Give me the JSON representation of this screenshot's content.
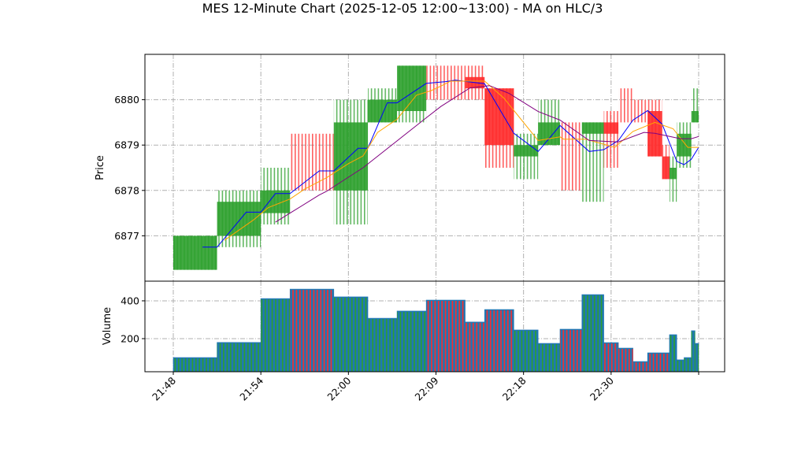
{
  "chart_data": [
    {
      "type": "candlestick",
      "title": "MES 12-Minute Chart (2025-12-05 12:00~13:00) - MA on HLC/3",
      "ylabel": "Price",
      "ylim": [
        6876.0,
        6881.0
      ],
      "yticks": [
        6877,
        6878,
        6879,
        6880
      ],
      "grid": true,
      "colors": {
        "up": "#2ca02c",
        "down": "#ff2a2a",
        "ma_fast": "#0000ff",
        "ma_mid": "#ffa500",
        "ma_slow": "#800080"
      },
      "xticks": [
        {
          "t": "21:48",
          "label": "21:48"
        },
        {
          "t": "21:54",
          "label": "21:54"
        },
        {
          "t": "22:00",
          "label": "22:00"
        },
        {
          "t": "22:09",
          "label": "22:09"
        },
        {
          "t": "22:18",
          "label": "22:18"
        },
        {
          "t": "22:30",
          "label": "22:30"
        },
        {
          "t": "22:42",
          "label": ""
        }
      ],
      "candles": [
        {
          "start": "21:48",
          "end": "21:51",
          "open": 6876.25,
          "high": 6877.0,
          "low": 6876.25,
          "close": 6877.0,
          "color": "up"
        },
        {
          "start": "21:51",
          "end": "21:54",
          "open": 6877.0,
          "high": 6878.0,
          "low": 6876.75,
          "close": 6877.75,
          "color": "up"
        },
        {
          "start": "21:54",
          "end": "21:56",
          "open": 6877.5,
          "high": 6878.5,
          "low": 6877.25,
          "close": 6878.0,
          "color": "up"
        },
        {
          "start": "21:56",
          "end": "21:59",
          "open": 6878.0,
          "high": 6879.25,
          "low": 6878.0,
          "close": 6878.0,
          "color": "down"
        },
        {
          "start": "21:59",
          "end": "22:02",
          "open": 6878.0,
          "high": 6880.0,
          "low": 6877.25,
          "close": 6879.5,
          "color": "up"
        },
        {
          "start": "22:02",
          "end": "22:05",
          "open": 6879.5,
          "high": 6880.25,
          "low": 6879.5,
          "close": 6880.0,
          "color": "up"
        },
        {
          "start": "22:05",
          "end": "22:08",
          "open": 6879.75,
          "high": 6880.75,
          "low": 6879.5,
          "close": 6880.75,
          "color": "up"
        },
        {
          "start": "22:08",
          "end": "22:12",
          "open": 6880.25,
          "high": 6880.75,
          "low": 6880.0,
          "close": 6880.25,
          "color": "down"
        },
        {
          "start": "22:12",
          "end": "22:14",
          "open": 6880.5,
          "high": 6880.75,
          "low": 6880.0,
          "close": 6880.25,
          "color": "down"
        },
        {
          "start": "22:14",
          "end": "22:17",
          "open": 6880.25,
          "high": 6880.25,
          "low": 6878.5,
          "close": 6879.0,
          "color": "down"
        },
        {
          "start": "22:17",
          "end": "22:20",
          "open": 6878.75,
          "high": 6879.25,
          "low": 6878.25,
          "close": 6879.0,
          "color": "up"
        },
        {
          "start": "22:20",
          "end": "22:23",
          "open": 6879.0,
          "high": 6880.0,
          "low": 6879.0,
          "close": 6879.5,
          "color": "up"
        },
        {
          "start": "22:23",
          "end": "22:26",
          "open": 6879.5,
          "high": 6879.5,
          "low": 6878.0,
          "close": 6879.5,
          "color": "down"
        },
        {
          "start": "22:26",
          "end": "22:29",
          "open": 6879.25,
          "high": 6879.5,
          "low": 6877.75,
          "close": 6879.5,
          "color": "up"
        },
        {
          "start": "22:29",
          "end": "22:31",
          "open": 6879.5,
          "high": 6879.75,
          "low": 6878.5,
          "close": 6879.25,
          "color": "down"
        },
        {
          "start": "22:31",
          "end": "22:33",
          "open": 6879.75,
          "high": 6880.25,
          "low": 6879.5,
          "close": 6879.75,
          "color": "down"
        },
        {
          "start": "22:33",
          "end": "22:35",
          "open": 6879.75,
          "high": 6880.0,
          "low": 6879.5,
          "close": 6879.75,
          "color": "down"
        },
        {
          "start": "22:35",
          "end": "22:37",
          "open": 6879.75,
          "high": 6880.0,
          "low": 6878.75,
          "close": 6878.75,
          "color": "down"
        },
        {
          "start": "22:37",
          "end": "22:38",
          "open": 6878.75,
          "high": 6879.0,
          "low": 6878.25,
          "close": 6878.25,
          "color": "down"
        },
        {
          "start": "22:38",
          "end": "22:39",
          "open": 6878.25,
          "high": 6878.75,
          "low": 6877.75,
          "close": 6878.5,
          "color": "up"
        },
        {
          "start": "22:39",
          "end": "22:40",
          "open": 6878.75,
          "high": 6879.5,
          "low": 6878.5,
          "close": 6879.25,
          "color": "up"
        },
        {
          "start": "22:40",
          "end": "22:41",
          "open": 6878.75,
          "high": 6879.5,
          "low": 6878.5,
          "close": 6879.25,
          "color": "up"
        },
        {
          "start": "22:41",
          "end": "22:42",
          "open": 6879.5,
          "high": 6880.25,
          "low": 6879.5,
          "close": 6879.75,
          "color": "up"
        }
      ],
      "moving_averages": [
        {
          "key": "ma_fast",
          "points": [
            [
              "21:50",
              6876.75
            ],
            [
              "21:51",
              6876.75
            ],
            [
              "21:53",
              6877.52
            ],
            [
              "21:54",
              6877.52
            ],
            [
              "21:55",
              6877.93
            ],
            [
              "21:56",
              6877.93
            ],
            [
              "21:58",
              6878.43
            ],
            [
              "21:59",
              6878.43
            ],
            [
              "22:01",
              6878.93
            ],
            [
              "22:02",
              6878.93
            ],
            [
              "22:04",
              6879.93
            ],
            [
              "22:05",
              6879.93
            ],
            [
              "22:08",
              6880.36
            ],
            [
              "22:10",
              6880.4
            ],
            [
              "22:11",
              6880.43
            ],
            [
              "22:14",
              6880.35
            ],
            [
              "22:17",
              6879.26
            ],
            [
              "22:20",
              6878.86
            ],
            [
              "22:23",
              6879.43
            ],
            [
              "22:27",
              6878.86
            ],
            [
              "22:29",
              6878.9
            ],
            [
              "22:31",
              6879.1
            ],
            [
              "22:33",
              6879.55
            ],
            [
              "22:35",
              6879.76
            ],
            [
              "22:37",
              6879.46
            ],
            [
              "22:39",
              6878.64
            ],
            [
              "22:40",
              6878.57
            ],
            [
              "22:41",
              6878.69
            ],
            [
              "22:42",
              6878.95
            ]
          ]
        },
        {
          "key": "ma_mid",
          "points": [
            [
              "21:51:30",
              6876.9
            ],
            [
              "21:53:30",
              6877.35
            ],
            [
              "21:54:30",
              6877.62
            ],
            [
              "21:56",
              6877.81
            ],
            [
              "21:57",
              6878.03
            ],
            [
              "21:58:30",
              6878.28
            ],
            [
              "22:00",
              6878.59
            ],
            [
              "22:01:30",
              6878.76
            ],
            [
              "22:03",
              6879.28
            ],
            [
              "22:05",
              6879.57
            ],
            [
              "22:07",
              6880.1
            ],
            [
              "22:08:30",
              6880.2
            ],
            [
              "22:09:30",
              6880.3
            ],
            [
              "22:10:30",
              6880.41
            ],
            [
              "22:14",
              6880.41
            ],
            [
              "22:16",
              6880.03
            ],
            [
              "22:20",
              6879.1
            ],
            [
              "22:23",
              6879.18
            ],
            [
              "22:23:30",
              6879.13
            ],
            [
              "22:26:30",
              6879.13
            ],
            [
              "22:30:30",
              6878.95
            ],
            [
              "22:33",
              6879.3
            ],
            [
              "22:36",
              6879.5
            ],
            [
              "22:38:30",
              6879.36
            ],
            [
              "22:40:30",
              6878.95
            ],
            [
              "22:42",
              6878.95
            ]
          ]
        },
        {
          "key": "ma_slow",
          "points": [
            [
              "21:55",
              6877.3
            ],
            [
              "21:56",
              6877.5
            ],
            [
              "21:58",
              6877.9
            ],
            [
              "21:58:30",
              6877.98
            ],
            [
              "22:01",
              6878.43
            ],
            [
              "22:01:30",
              6878.5
            ],
            [
              "22:08",
              6879.6
            ],
            [
              "22:09:30",
              6879.85
            ],
            [
              "22:12:30",
              6880.26
            ],
            [
              "22:14:30",
              6880.31
            ],
            [
              "22:16:30",
              6880.14
            ],
            [
              "22:20",
              6879.74
            ],
            [
              "22:23",
              6879.55
            ],
            [
              "22:27",
              6879.1
            ],
            [
              "22:31",
              6879.07
            ],
            [
              "22:34:30",
              6879.28
            ],
            [
              "22:36",
              6879.26
            ],
            [
              "22:39:30",
              6879.14
            ],
            [
              "22:41",
              6879.14
            ],
            [
              "22:42",
              6879.19
            ]
          ]
        }
      ]
    },
    {
      "type": "bar",
      "ylabel": "Volume",
      "ylim": [
        25,
        504
      ],
      "yticks": [
        200,
        400
      ],
      "grid": true,
      "bar_color": "#1f77b4",
      "bars": [
        {
          "start": "21:48",
          "end": "21:51",
          "value": 100,
          "color": "up"
        },
        {
          "start": "21:51",
          "end": "21:54",
          "value": 180,
          "color": "up"
        },
        {
          "start": "21:54",
          "end": "21:56",
          "value": 412,
          "color": "up"
        },
        {
          "start": "21:56",
          "end": "21:59",
          "value": 462,
          "color": "down"
        },
        {
          "start": "21:59",
          "end": "22:02",
          "value": 421,
          "color": "up"
        },
        {
          "start": "22:02",
          "end": "22:05",
          "value": 308,
          "color": "up"
        },
        {
          "start": "22:05",
          "end": "22:08",
          "value": 346,
          "color": "up"
        },
        {
          "start": "22:08",
          "end": "22:12",
          "value": 404,
          "color": "down"
        },
        {
          "start": "22:12",
          "end": "22:14",
          "value": 288,
          "color": "down"
        },
        {
          "start": "22:14",
          "end": "22:17",
          "value": 354,
          "color": "down"
        },
        {
          "start": "22:17",
          "end": "22:20",
          "value": 246,
          "color": "up"
        },
        {
          "start": "22:20",
          "end": "22:23",
          "value": 175,
          "color": "up"
        },
        {
          "start": "22:23",
          "end": "22:26",
          "value": 250,
          "color": "down"
        },
        {
          "start": "22:26",
          "end": "22:29",
          "value": 433,
          "color": "up"
        },
        {
          "start": "22:29",
          "end": "22:31",
          "value": 179,
          "color": "down"
        },
        {
          "start": "22:31",
          "end": "22:33",
          "value": 150,
          "color": "down"
        },
        {
          "start": "22:33",
          "end": "22:35",
          "value": 79,
          "color": "down"
        },
        {
          "start": "22:35",
          "end": "22:38",
          "value": 125,
          "color": "down"
        },
        {
          "start": "22:38",
          "end": "22:39",
          "value": 221,
          "color": "up"
        },
        {
          "start": "22:39",
          "end": "22:40",
          "value": 88,
          "color": "up"
        },
        {
          "start": "22:40",
          "end": "22:41",
          "value": 100,
          "color": "up"
        },
        {
          "start": "22:41",
          "end": "22:41:30",
          "value": 242,
          "color": "up"
        },
        {
          "start": "22:41:30",
          "end": "22:42",
          "value": 175,
          "color": "up"
        }
      ]
    }
  ]
}
